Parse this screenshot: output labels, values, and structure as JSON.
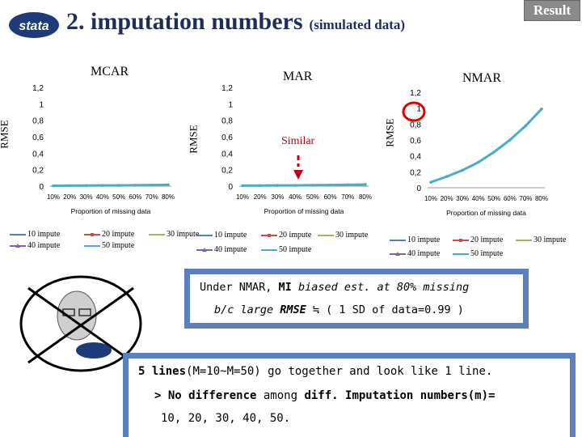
{
  "header": {
    "title": "2. imputation numbers",
    "subtitle": "(simulated data)",
    "badge": "Result",
    "logo": "stata-logo"
  },
  "panels": {
    "mcar": {
      "label": "MCAR",
      "ylabel": "RMSE",
      "xlabel": "Proportion of missing data"
    },
    "mar": {
      "label": "MAR",
      "ylabel": "RMSE",
      "xlabel": "Proportion of missing data",
      "annotation": "Similar"
    },
    "nmar": {
      "label": "NMAR",
      "ylabel": "RMSE",
      "xlabel": "Proportion of missing data"
    }
  },
  "legend": {
    "i10": "10 impute",
    "i20": "20 impute",
    "i30": "30 impute",
    "i40": "40 impute",
    "i50": "50 impute"
  },
  "chart_data": [
    {
      "type": "line",
      "title": "MCAR",
      "ylabel": "RMSE",
      "xlabel": "Proportion of missing data",
      "categories": [
        "10%",
        "20%",
        "30%",
        "40%",
        "50%",
        "60%",
        "70%",
        "80%"
      ],
      "yticks": [
        "0",
        "0,2",
        "0,4",
        "0,6",
        "0,8",
        "1",
        "1,2"
      ],
      "ylim": [
        0,
        1.2
      ],
      "series": [
        {
          "name": "10 impute",
          "values": [
            0.005,
            0.006,
            0.007,
            0.008,
            0.009,
            0.011,
            0.013,
            0.016
          ]
        },
        {
          "name": "20 impute",
          "values": [
            0.005,
            0.006,
            0.007,
            0.008,
            0.009,
            0.011,
            0.013,
            0.016
          ]
        },
        {
          "name": "30 impute",
          "values": [
            0.005,
            0.006,
            0.007,
            0.008,
            0.009,
            0.011,
            0.013,
            0.016
          ]
        },
        {
          "name": "40 impute",
          "values": [
            0.005,
            0.006,
            0.007,
            0.008,
            0.009,
            0.011,
            0.013,
            0.016
          ]
        },
        {
          "name": "50 impute",
          "values": [
            0.005,
            0.006,
            0.007,
            0.008,
            0.009,
            0.011,
            0.013,
            0.016
          ]
        }
      ]
    },
    {
      "type": "line",
      "title": "MAR",
      "ylabel": "RMSE",
      "xlabel": "Proportion of missing data",
      "categories": [
        "10%",
        "20%",
        "30%",
        "40%",
        "50%",
        "60%",
        "70%",
        "80%"
      ],
      "yticks": [
        "0",
        "0,2",
        "0,4",
        "0,6",
        "0,8",
        "1",
        "1,2"
      ],
      "ylim": [
        0,
        1.2
      ],
      "series": [
        {
          "name": "10 impute",
          "values": [
            0.006,
            0.007,
            0.008,
            0.009,
            0.011,
            0.013,
            0.016,
            0.02
          ]
        },
        {
          "name": "20 impute",
          "values": [
            0.006,
            0.007,
            0.008,
            0.009,
            0.011,
            0.013,
            0.016,
            0.02
          ]
        },
        {
          "name": "30 impute",
          "values": [
            0.006,
            0.007,
            0.008,
            0.009,
            0.011,
            0.013,
            0.016,
            0.02
          ]
        },
        {
          "name": "40 impute",
          "values": [
            0.006,
            0.007,
            0.008,
            0.009,
            0.011,
            0.013,
            0.016,
            0.02
          ]
        },
        {
          "name": "50 impute",
          "values": [
            0.006,
            0.007,
            0.008,
            0.009,
            0.011,
            0.013,
            0.016,
            0.02
          ]
        }
      ]
    },
    {
      "type": "line",
      "title": "NMAR",
      "ylabel": "RMSE",
      "xlabel": "Proportion of missing data",
      "categories": [
        "10%",
        "20%",
        "30%",
        "40%",
        "50%",
        "60%",
        "70%",
        "80%"
      ],
      "yticks": [
        "0",
        "0,2",
        "0,4",
        "0,6",
        "0,8",
        "1",
        "1,2"
      ],
      "ylim": [
        0,
        1.2
      ],
      "series": [
        {
          "name": "10 impute",
          "values": [
            0.07,
            0.14,
            0.22,
            0.32,
            0.45,
            0.6,
            0.78,
            0.99
          ]
        },
        {
          "name": "20 impute",
          "values": [
            0.07,
            0.14,
            0.22,
            0.32,
            0.45,
            0.6,
            0.78,
            0.99
          ]
        },
        {
          "name": "30 impute",
          "values": [
            0.07,
            0.14,
            0.22,
            0.32,
            0.45,
            0.6,
            0.78,
            0.99
          ]
        },
        {
          "name": "40 impute",
          "values": [
            0.07,
            0.14,
            0.22,
            0.32,
            0.45,
            0.6,
            0.78,
            0.99
          ]
        },
        {
          "name": "50 impute",
          "values": [
            0.07,
            0.14,
            0.22,
            0.32,
            0.45,
            0.6,
            0.78,
            0.99
          ]
        }
      ]
    }
  ],
  "callout1": {
    "l1a": "Under NMAR, ",
    "l1b": "MI",
    "l1c": " biased est. at 80% missing",
    "l2a": "b/c large ",
    "l2b": "RMSE",
    "l2c": " ≒ ( 1 SD of data=0.99 )"
  },
  "callout2": {
    "l1a": "5 lines",
    "l1b": "(M=10~M=50) go together and look like 1 line.",
    "l2a": "> No difference",
    "l2b": " among ",
    "l2c": "diff. Imputation numbers(m)=",
    "l3": "10, 20, 30, 40, 50."
  },
  "colors": {
    "title": "#1f2d5a",
    "s10": "#4f81bd",
    "s20": "#c0504d",
    "s30": "#9bbb59",
    "s40": "#8064a2",
    "s50": "#4bacc6",
    "callout_border": "#5b7fbf"
  }
}
